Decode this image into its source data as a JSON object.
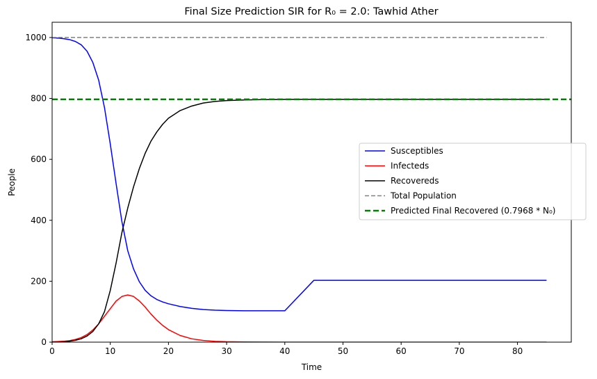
{
  "chart_data": {
    "type": "line",
    "title": "Final Size Prediction SIR for R₀ = 2.0: Tawhid Ather",
    "xlabel": "Time",
    "ylabel": "People",
    "xlim": [
      0,
      89.25
    ],
    "ylim": [
      0,
      1050
    ],
    "xticks": [
      0,
      10,
      20,
      30,
      40,
      50,
      60,
      70,
      80
    ],
    "yticks": [
      0,
      200,
      400,
      600,
      800,
      1000
    ],
    "grid": false,
    "legend_position": "center-right",
    "x": [
      0,
      1,
      2,
      3,
      4,
      5,
      6,
      7,
      8,
      9,
      10,
      11,
      12,
      13,
      14,
      15,
      16,
      17,
      18,
      19,
      20,
      22,
      24,
      26,
      28,
      30,
      33,
      36,
      40,
      45,
      50,
      55,
      60,
      65,
      70,
      75,
      80,
      85
    ],
    "series": [
      {
        "name": "Susceptibles",
        "color": "#0000ff",
        "style": "solid",
        "values": [
          999,
          998,
          996,
          993,
          987,
          976,
          955,
          918,
          860,
          770,
          650,
          520,
          395,
          300,
          240,
          198,
          170,
          152,
          140,
          132,
          126,
          117,
          111,
          107,
          105,
          104,
          103,
          103,
          103,
          203,
          203,
          203,
          203,
          203,
          203,
          203,
          203,
          203
        ]
      },
      {
        "name": "Infecteds",
        "color": "#ff0000",
        "style": "solid",
        "values": [
          1,
          2,
          3,
          5,
          9,
          15,
          25,
          40,
          60,
          85,
          110,
          135,
          150,
          155,
          150,
          135,
          115,
          92,
          72,
          55,
          41,
          22,
          11,
          5.5,
          2.7,
          1.3,
          0.5,
          0.2,
          0.05,
          0,
          0,
          0,
          0,
          0,
          0,
          0,
          0,
          0
        ]
      },
      {
        "name": "Recovereds",
        "color": "#000000",
        "style": "solid",
        "values": [
          0,
          0.5,
          1.5,
          3,
          6,
          11,
          20,
          35,
          60,
          100,
          170,
          260,
          360,
          440,
          510,
          570,
          620,
          660,
          690,
          715,
          735,
          760,
          775,
          785,
          790,
          793,
          795,
          796,
          797,
          797,
          797,
          797,
          797,
          797,
          797,
          797,
          797,
          797
        ]
      },
      {
        "name": "Total Population",
        "color": "#808080",
        "style": "dashed",
        "x": [
          0,
          85
        ],
        "values": [
          1000,
          1000
        ]
      },
      {
        "name": "Predicted Final Recovered (0.7968 * N₀)",
        "color": "#008000",
        "style": "dashed-thick",
        "x": [
          0,
          89.25
        ],
        "values": [
          796.8,
          796.8
        ]
      }
    ]
  }
}
